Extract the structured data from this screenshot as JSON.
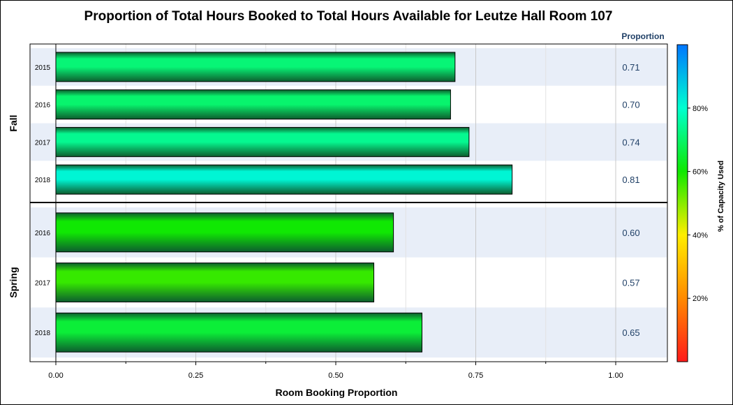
{
  "chart_data": {
    "type": "bar",
    "orientation": "horizontal",
    "title": "Proportion of Total Hours Booked to Total Hours Available for Leutze Hall Room 107",
    "xlabel": "Room Booking Proportion",
    "xlim": [
      0,
      1.0
    ],
    "x_ticks": [
      "0.00",
      "0.25",
      "0.50",
      "0.75",
      "1.00"
    ],
    "x_tick_values": [
      0,
      0.25,
      0.5,
      0.75,
      1.0
    ],
    "value_column_header": "Proportion",
    "grid": true,
    "panels": [
      {
        "name": "Fall",
        "categories": [
          "2015",
          "2016",
          "2017",
          "2018"
        ],
        "values": [
          0.713,
          0.705,
          0.738,
          0.815
        ],
        "value_labels": [
          "0.71",
          "0.70",
          "0.74",
          "0.81"
        ]
      },
      {
        "name": "Spring",
        "categories": [
          "2016",
          "2017",
          "2018"
        ],
        "values": [
          0.603,
          0.568,
          0.654
        ],
        "value_labels": [
          "0.60",
          "0.57",
          "0.65"
        ]
      }
    ],
    "colorbar": {
      "title": "% of Capacity Used",
      "range": [
        0,
        100
      ],
      "tick_values": [
        20,
        40,
        60,
        80
      ],
      "tick_labels": [
        "20%",
        "40%",
        "60%",
        "80%"
      ],
      "placement": "right",
      "colors": [
        "#ff1a1a",
        "#ff8a00",
        "#ffee00",
        "#10e800",
        "#00ffd0",
        "#0076ff"
      ]
    },
    "colors": {
      "band": "#e8eef8",
      "grid": "#c8c8c8",
      "bar_edge": "#000000",
      "bar_dark": "#0d5d2e",
      "value_text": "#1f3f66"
    }
  }
}
